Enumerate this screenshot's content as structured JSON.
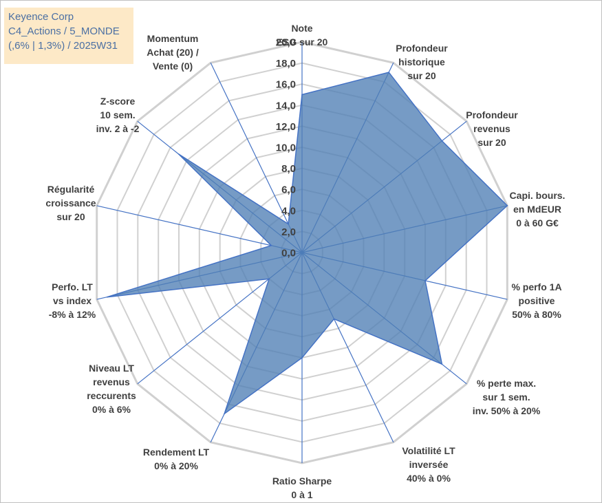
{
  "header": {
    "line1": "Keyence Corp",
    "line2": "C4_Actions / 5_MONDE",
    "line3": "(,6% | 1,3%) / 2025W31"
  },
  "chart_data": {
    "type": "radar",
    "scale": {
      "min": 0,
      "max": 20,
      "step": 2
    },
    "tick_labels": [
      "0,0",
      "2,0",
      "4,0",
      "6,0",
      "8,0",
      "10,0",
      "12,0",
      "14,0",
      "16,0",
      "18,0",
      "20,0"
    ],
    "axes": [
      {
        "label": [
          "Note",
          "ESG sur 20"
        ]
      },
      {
        "label": [
          "Profondeur",
          "historique",
          "sur 20"
        ]
      },
      {
        "label": [
          "Profondeur",
          "revenus",
          "sur 20"
        ]
      },
      {
        "label": [
          "Capi. bours.",
          "en MdEUR",
          "0 à 60 G€"
        ]
      },
      {
        "label": [
          "% perfo 1A",
          "positive",
          "50% à 80%"
        ]
      },
      {
        "label": [
          "% perte max.",
          "sur 1 sem.",
          "inv. 50% à 20%"
        ]
      },
      {
        "label": [
          "Volatilité LT",
          "inversée",
          "40% à 0%"
        ]
      },
      {
        "label": [
          "Ratio Sharpe",
          "0 à 1"
        ]
      },
      {
        "label": [
          "Rendement LT",
          "0% à 20%"
        ]
      },
      {
        "label": [
          "Niveau LT",
          "revenus",
          "reccurents",
          "0% à 6%"
        ]
      },
      {
        "label": [
          "Perfo. LT",
          "vs index",
          "-8% à 12%"
        ]
      },
      {
        "label": [
          "Régularité",
          "croissance",
          "sur 20"
        ]
      },
      {
        "label": [
          "Z-score",
          "10 sem.",
          "inv. 2 à -2"
        ]
      },
      {
        "label": [
          "Momentum",
          "Achat (20) /",
          "Vente (0)"
        ]
      }
    ],
    "series": [
      {
        "values": [
          15,
          19,
          17,
          20,
          12,
          17,
          7,
          10,
          17,
          4,
          19,
          3,
          15,
          3
        ]
      }
    ],
    "colors": {
      "fill": "#4f7fb5",
      "stroke": "#4472c4",
      "grid": "#d0d0d0",
      "spoke": "#4472c4"
    }
  }
}
